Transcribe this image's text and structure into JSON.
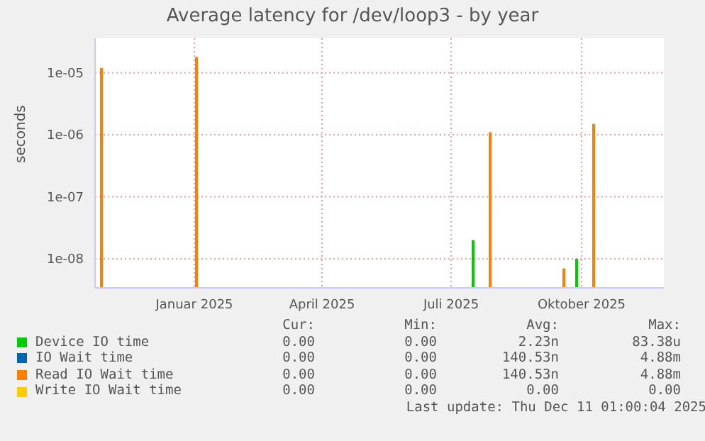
{
  "chart_data": {
    "type": "bar",
    "title": "Average latency for /dev/loop3 - by year",
    "ylabel": "seconds",
    "x": [
      "2024-10-24",
      "2024-12-30",
      "2025-07-25",
      "2025-09-15",
      "2025-10-06"
    ],
    "series": [
      {
        "name": "Device IO time",
        "color": "#00cc00",
        "values": [
          null,
          null,
          2e-08,
          null,
          1e-08
        ]
      },
      {
        "name": "IO Wait time",
        "color": "#0066b3",
        "values": [
          null,
          null,
          null,
          null,
          null
        ]
      },
      {
        "name": "Read IO Wait time",
        "color": "#ff8000",
        "values": [
          1.2e-05,
          1.8e-05,
          1.1e-06,
          7e-09,
          1.5e-06
        ]
      },
      {
        "name": "Write IO Wait time",
        "color": "#ffcc00",
        "values": [
          null,
          null,
          null,
          null,
          null
        ]
      }
    ],
    "log": true,
    "ylim": [
      3.4e-09,
      3.6e-05
    ],
    "yticks": [
      {
        "value": 1e-08,
        "label": "1e-08"
      },
      {
        "value": 1e-07,
        "label": "1e-07"
      },
      {
        "value": 1e-06,
        "label": "1e-06"
      },
      {
        "value": 1e-05,
        "label": "1e-05"
      }
    ],
    "xlim": [
      "2024-10-23",
      "2025-11-28"
    ],
    "xticks": [
      {
        "value": "2025-01-01",
        "label": "Januar 2025"
      },
      {
        "value": "2025-04-01",
        "label": "April 2025"
      },
      {
        "value": "2025-07-01",
        "label": "Juli 2025"
      },
      {
        "value": "2025-10-01",
        "label": "Oktober 2025"
      }
    ],
    "grid": true,
    "legend": "bottom",
    "annotations": [
      "Cur:",
      "Min:",
      "Avg:",
      "Max:",
      "0.00",
      "0.00",
      "2.23n",
      "83.38u",
      "0.00",
      "0.00",
      "140.53n",
      "4.88m",
      "0.00",
      "0.00",
      "140.53n",
      "4.88m",
      "0.00",
      "0.00",
      "0.00",
      "0.00",
      "Last update: Thu Dec 11 01:00:04 2025"
    ]
  }
}
